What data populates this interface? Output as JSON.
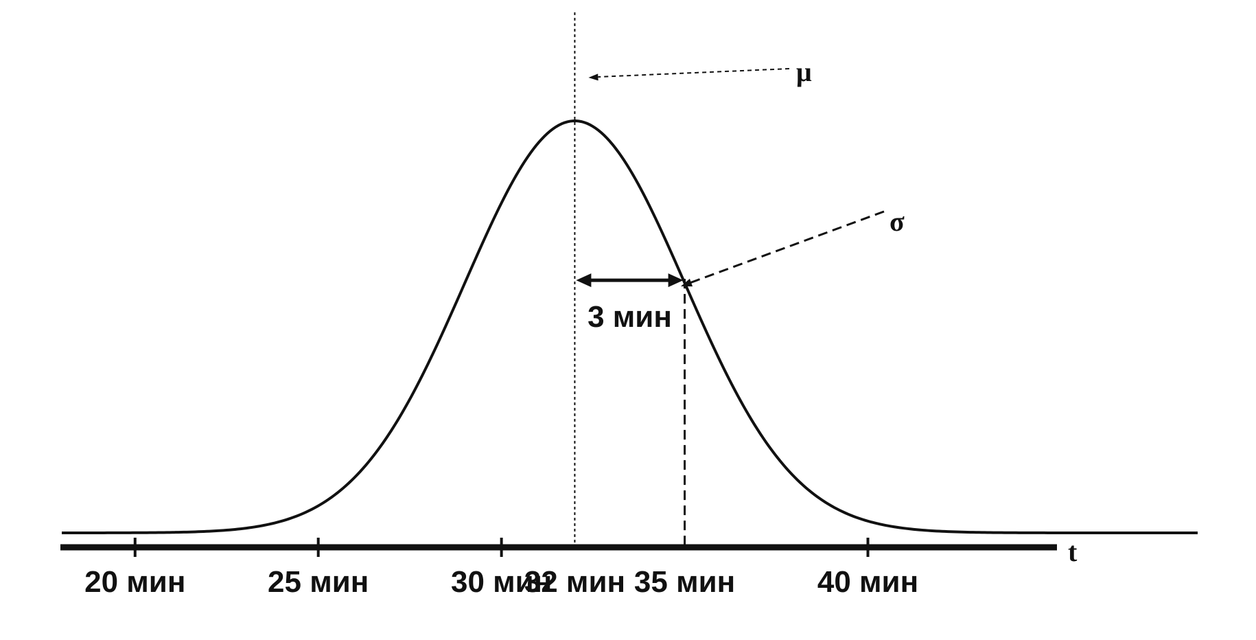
{
  "chart_data": {
    "type": "line",
    "title": "",
    "xlabel": "t",
    "ylabel": "",
    "xlim": [
      18,
      49
    ],
    "grid": false,
    "legend": "none",
    "distribution": "normal",
    "mean": 32,
    "sigma": 3,
    "ticks": [
      {
        "value": 20,
        "label": "20 мин"
      },
      {
        "value": 25,
        "label": "25 мин"
      },
      {
        "value": 30,
        "label": "30 мин"
      },
      {
        "value": 32,
        "label": "32 мин"
      },
      {
        "value": 35,
        "label": "35 мин"
      },
      {
        "value": 40,
        "label": "40 мин"
      }
    ],
    "annotations": {
      "mean_symbol": "μ",
      "sigma_symbol": "σ",
      "sigma_span_label": "3 мин"
    }
  },
  "colors": {
    "ink": "#111111",
    "background": "#ffffff"
  }
}
